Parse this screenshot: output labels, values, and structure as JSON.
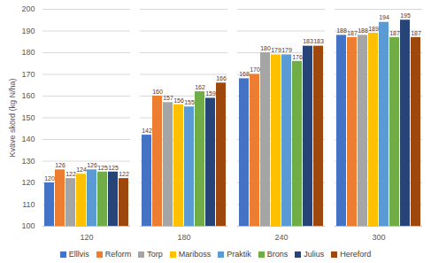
{
  "chart_data": {
    "type": "bar",
    "y_label": "Kväve skörd (kg N/ha)",
    "categories": [
      "120",
      "180",
      "240",
      "300"
    ],
    "series": [
      {
        "name": "Elllvis",
        "color": "#4472C4",
        "values": [
          120,
          142,
          168,
          188
        ]
      },
      {
        "name": "Reform",
        "color": "#ED7D31",
        "values": [
          126,
          160,
          170,
          187
        ]
      },
      {
        "name": "Torp",
        "color": "#A5A5A5",
        "values": [
          122,
          157,
          180,
          188
        ]
      },
      {
        "name": "Mariboss",
        "color": "#FFC000",
        "values": [
          124,
          156,
          179,
          189
        ]
      },
      {
        "name": "Praktik",
        "color": "#5B9BD5",
        "values": [
          126,
          155,
          179,
          194
        ]
      },
      {
        "name": "Brons",
        "color": "#70AD47",
        "values": [
          125,
          162,
          176,
          187
        ]
      },
      {
        "name": "Julius",
        "color": "#264478",
        "values": [
          125,
          159,
          183,
          195
        ]
      },
      {
        "name": "Hereford",
        "color": "#9E480E",
        "values": [
          122,
          166,
          183,
          187
        ]
      }
    ],
    "ylim": [
      100,
      200
    ],
    "yticks": [
      100,
      110,
      120,
      130,
      140,
      150,
      160,
      170,
      180,
      190,
      200
    ],
    "grid": true,
    "data_labels": true,
    "legend": "bottom"
  }
}
